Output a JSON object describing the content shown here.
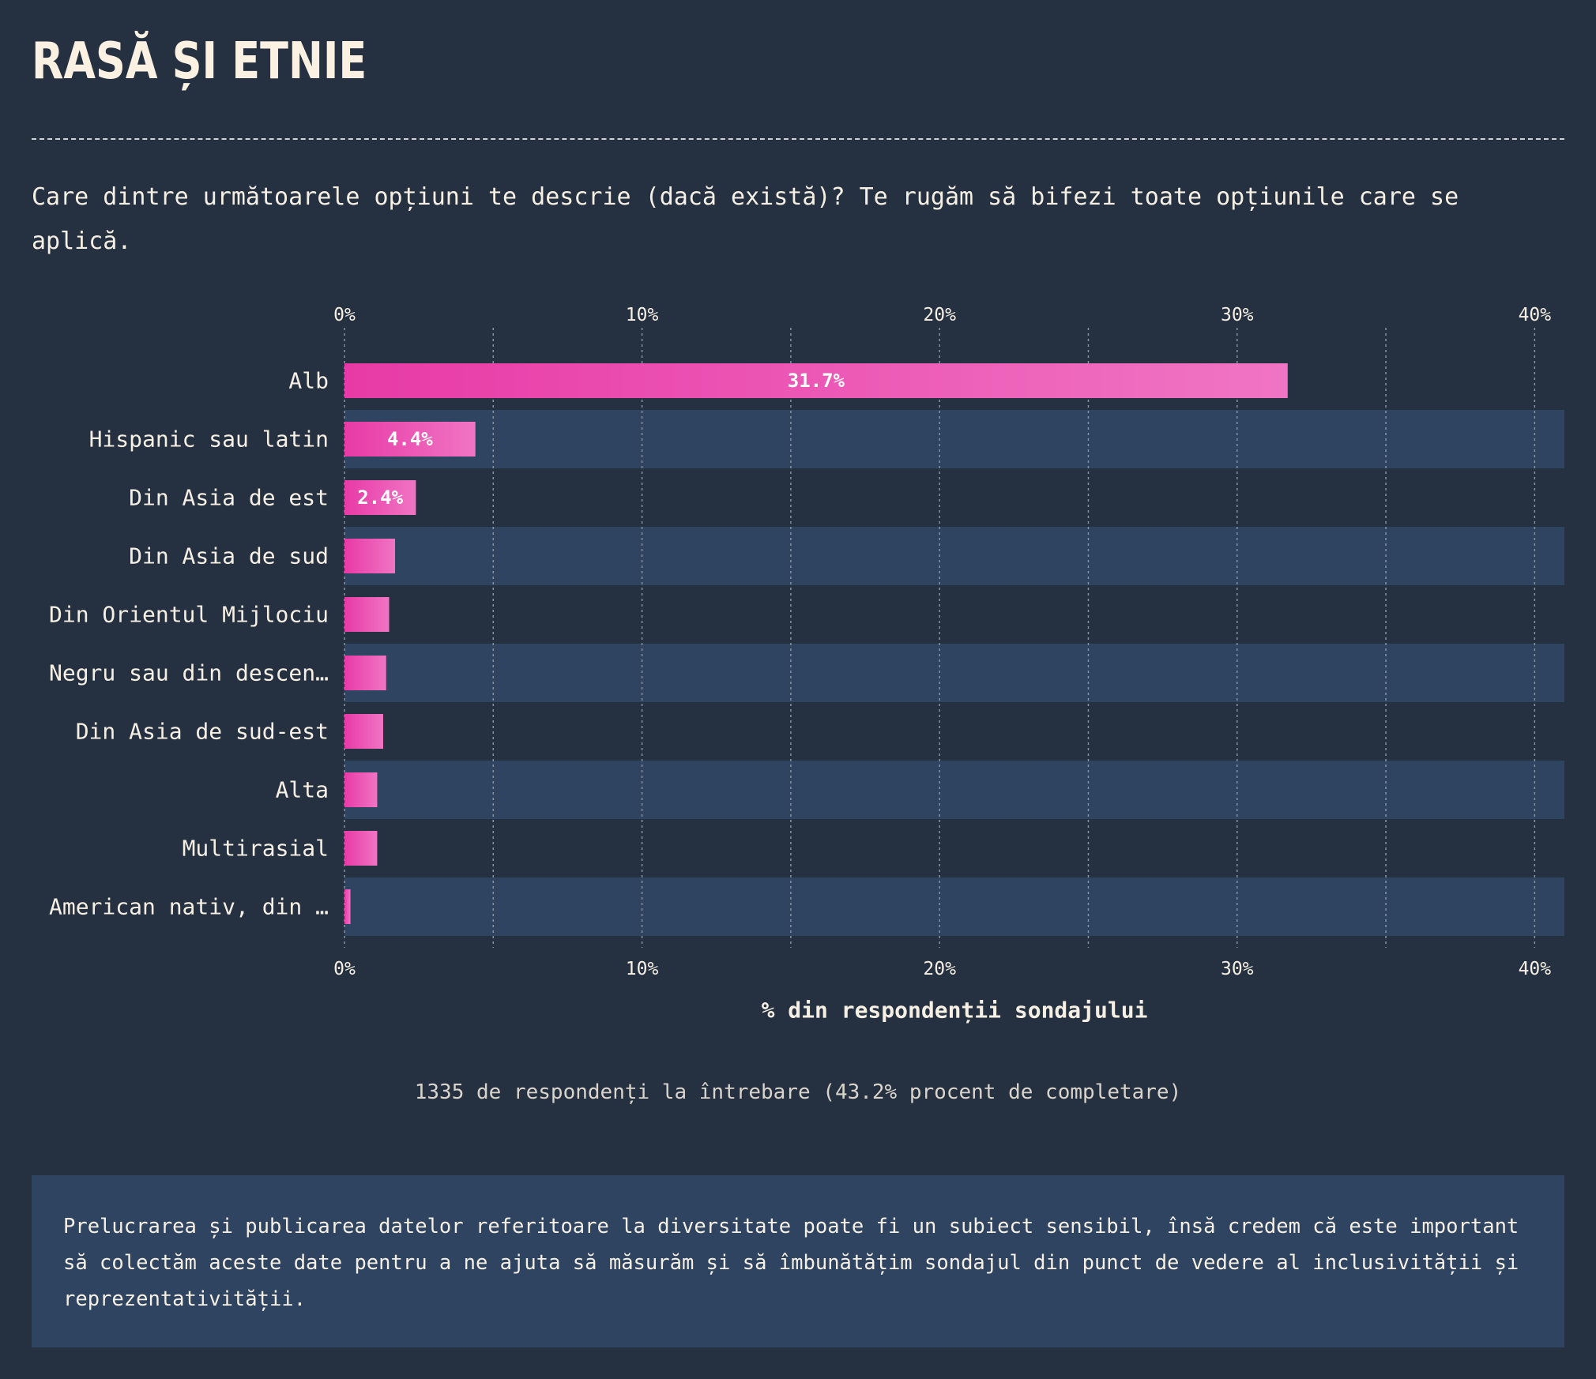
{
  "header": {
    "title": "RASĂ ȘI ETNIE",
    "question": "Care dintre următoarele opțiuni te descrie (dacă există)? Te rugăm să bifezi toate opțiunile care se aplică."
  },
  "chart_data": {
    "type": "bar",
    "orientation": "horizontal",
    "categories": [
      "Alb",
      "Hispanic sau latin",
      "Din Asia de est",
      "Din Asia de sud",
      "Din Orientul Mijlociu",
      "Negru sau din descen…",
      "Din Asia de sud-est",
      "Alta",
      "Multirasial",
      "American nativ, din …"
    ],
    "series": [
      {
        "values": [
          31.7,
          4.4,
          2.4,
          1.7,
          1.5,
          1.4,
          1.3,
          1.1,
          1.1,
          0.2
        ],
        "data_labels": [
          "31.7%",
          "4.4%",
          "2.4%",
          "",
          "",
          "",
          "",
          "",
          "",
          ""
        ]
      }
    ],
    "xlabel": "% din respondenții sondajului",
    "xlim": [
      0,
      41
    ],
    "xticks": [
      0,
      10,
      20,
      30,
      40
    ],
    "xtick_labels": [
      "0%",
      "10%",
      "20%",
      "30%",
      "40%"
    ],
    "grid": true,
    "colors": {
      "bar_start": "#e83aa6",
      "bar_end": "#f075c4",
      "alt_row": "#2e4461",
      "grid": "#8793a3"
    }
  },
  "footer": {
    "note": "1335 de respondenți la întrebare (43.2% procent de completare)",
    "info": "Prelucrarea și publicarea datelor referitoare la diversitate poate fi un subiect sensibil, însă credem că este important să colectăm aceste date pentru a ne ajuta să măsurăm și să îmbunătățim sondajul din punct de vedere al inclusivității și reprezentativității."
  }
}
